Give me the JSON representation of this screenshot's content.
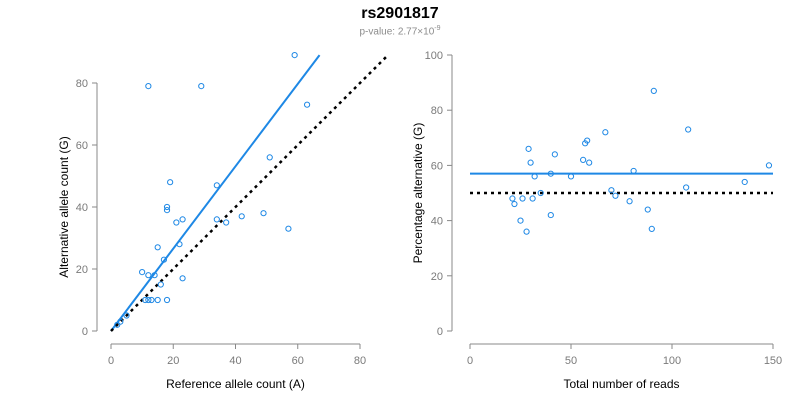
{
  "figure": {
    "title": "rs2901817",
    "pvalue_prefix": "p-value: 2.77×10",
    "pvalue_exponent": "-9"
  },
  "colors": {
    "accent": "#1e88e5",
    "axis": "#888888",
    "points": "#1e88e5",
    "reference": "#000000"
  },
  "chart_data": [
    {
      "type": "scatter",
      "xlabel": "Reference allele count (A)",
      "ylabel": "Alternative allele count (G)",
      "xlim": [
        0,
        80
      ],
      "ylim": [
        0,
        80
      ],
      "xticks": [
        0,
        20,
        40,
        60,
        80
      ],
      "yticks": [
        0,
        20,
        40,
        60,
        80
      ],
      "grid": false,
      "points": [
        [
          2,
          2
        ],
        [
          3,
          3
        ],
        [
          5,
          5
        ],
        [
          10,
          19
        ],
        [
          11,
          10
        ],
        [
          12,
          10
        ],
        [
          12,
          79
        ],
        [
          12,
          18
        ],
        [
          13,
          10
        ],
        [
          14,
          18
        ],
        [
          15,
          10
        ],
        [
          15,
          27
        ],
        [
          16,
          15
        ],
        [
          17,
          23
        ],
        [
          18,
          10
        ],
        [
          18,
          39
        ],
        [
          18,
          40
        ],
        [
          19,
          48
        ],
        [
          21,
          35
        ],
        [
          22,
          28
        ],
        [
          23,
          17
        ],
        [
          23,
          36
        ],
        [
          29,
          79
        ],
        [
          34,
          47
        ],
        [
          34,
          36
        ],
        [
          37,
          35
        ],
        [
          42,
          37
        ],
        [
          49,
          38
        ],
        [
          51,
          56
        ],
        [
          57,
          33
        ],
        [
          59,
          89
        ],
        [
          63,
          73
        ]
      ],
      "lines": [
        {
          "style": "solid",
          "color": "#1e88e5",
          "from": [
            0,
            0
          ],
          "to": [
            67,
            89
          ]
        },
        {
          "style": "dotted",
          "color": "#000000",
          "from": [
            0,
            0
          ],
          "to": [
            89,
            89
          ]
        }
      ]
    },
    {
      "type": "scatter",
      "xlabel": "Total number of reads",
      "ylabel": "Percentage alternative (G)",
      "xlim": [
        0,
        150
      ],
      "ylim": [
        0,
        100
      ],
      "xticks": [
        0,
        50,
        100,
        150
      ],
      "yticks": [
        0,
        20,
        40,
        60,
        80,
        100
      ],
      "grid": false,
      "points": [
        [
          21,
          48
        ],
        [
          22,
          46
        ],
        [
          25,
          40
        ],
        [
          26,
          48
        ],
        [
          28,
          36
        ],
        [
          29,
          66
        ],
        [
          30,
          61
        ],
        [
          31,
          48
        ],
        [
          32,
          56
        ],
        [
          35,
          50
        ],
        [
          40,
          42
        ],
        [
          40,
          57
        ],
        [
          42,
          64
        ],
        [
          50,
          56
        ],
        [
          56,
          62
        ],
        [
          57,
          68
        ],
        [
          58,
          69
        ],
        [
          59,
          61
        ],
        [
          67,
          72
        ],
        [
          70,
          51
        ],
        [
          72,
          49
        ],
        [
          79,
          47
        ],
        [
          81,
          58
        ],
        [
          88,
          44
        ],
        [
          90,
          37
        ],
        [
          91,
          87
        ],
        [
          107,
          52
        ],
        [
          108,
          73
        ],
        [
          136,
          54
        ],
        [
          148,
          60
        ]
      ],
      "lines": [
        {
          "style": "solid",
          "color": "#1e88e5",
          "from": [
            0,
            57
          ],
          "to": [
            150,
            57
          ]
        },
        {
          "style": "dotted",
          "color": "#000000",
          "from": [
            0,
            50
          ],
          "to": [
            150,
            50
          ]
        }
      ]
    }
  ]
}
